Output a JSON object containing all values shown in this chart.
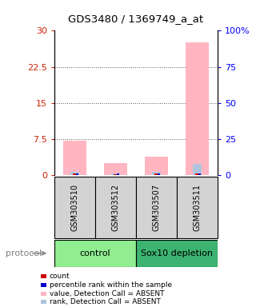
{
  "title": "GDS3480 / 1369749_a_at",
  "samples": [
    "GSM303510",
    "GSM303512",
    "GSM303507",
    "GSM303511"
  ],
  "ylim_left": [
    0,
    30
  ],
  "ylim_right": [
    0,
    100
  ],
  "yticks_left": [
    0,
    7.5,
    15,
    22.5,
    30
  ],
  "ytick_labels_left": [
    "0",
    "7.5",
    "15",
    "22.5",
    "30"
  ],
  "yticks_right": [
    0,
    25,
    50,
    75,
    100
  ],
  "ytick_labels_right": [
    "0",
    "25",
    "50",
    "75",
    "100%"
  ],
  "bar_values_pink": [
    7.2,
    2.5,
    3.8,
    27.5
  ],
  "bar_values_blue_light": [
    2.0,
    1.0,
    2.0,
    7.5
  ],
  "bar_values_red": [
    0.35,
    0.2,
    0.25,
    0.35
  ],
  "bar_values_blue_dark": [
    1.0,
    1.0,
    1.0,
    1.0
  ],
  "bar_width": 0.55,
  "color_pink": "#FFB6C1",
  "color_blue_light": "#B0C4DE",
  "color_red": "#CC0000",
  "color_blue_dark": "#0000CC",
  "grid_color": "#555555",
  "sample_box_color": "#D3D3D3",
  "control_color": "#90EE90",
  "sox10_color": "#3CB371",
  "legend_items": [
    {
      "color": "#CC0000",
      "label": "count"
    },
    {
      "color": "#0000CC",
      "label": "percentile rank within the sample"
    },
    {
      "color": "#FFB6C1",
      "label": "value, Detection Call = ABSENT"
    },
    {
      "color": "#B0C4DE",
      "label": "rank, Detection Call = ABSENT"
    }
  ]
}
